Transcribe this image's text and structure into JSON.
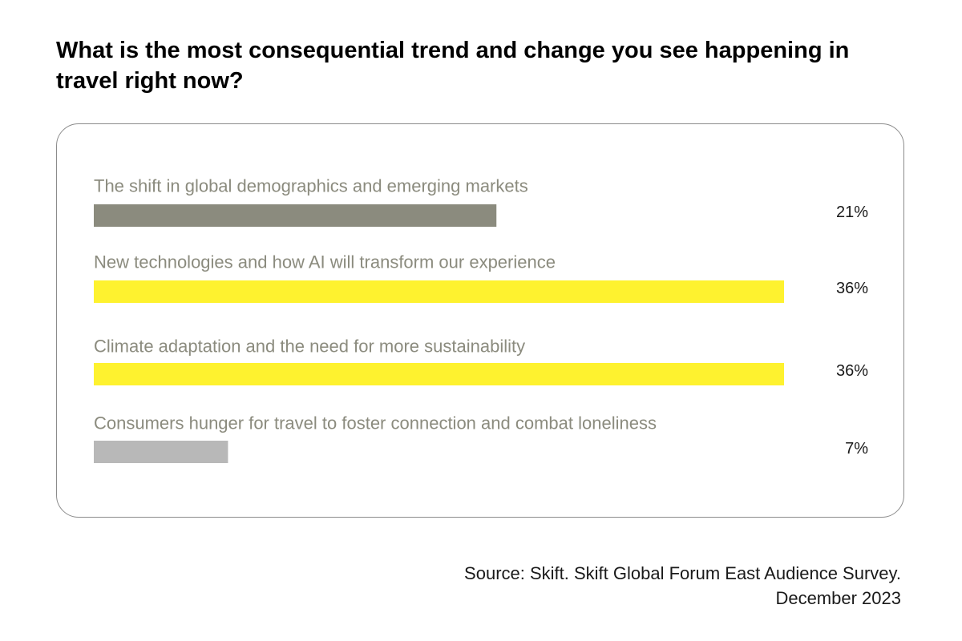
{
  "title": "What is the most consequential trend and change you see happening in travel right now?",
  "source": {
    "line1": "Source: Skift. Skift Global Forum East Audience Survey.",
    "line2": "December 2023"
  },
  "chart_data": {
    "type": "bar",
    "orientation": "horizontal",
    "unit": "%",
    "categories": [
      "The shift in global demographics and emerging markets",
      "New technologies and how AI will transform our experience",
      "Climate adaptation and the need for more sustainability",
      "Consumers hunger for travel to foster connection and combat loneliness"
    ],
    "values": [
      21,
      36,
      36,
      7
    ],
    "value_labels": [
      "21%",
      "36%",
      "36%",
      "7%"
    ],
    "colors": [
      "#8b8b7e",
      "#fef22f",
      "#fef22f",
      "#b8b8b8"
    ],
    "label_color": "#8b8b7e",
    "value_label_color": "#1a1a1a",
    "xlim": [
      0,
      36
    ],
    "grid": false,
    "legend": "none"
  }
}
